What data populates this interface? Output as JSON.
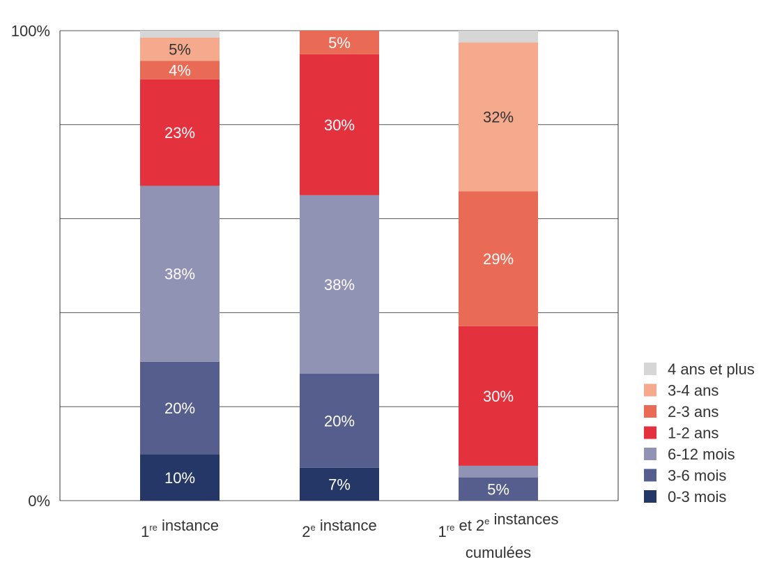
{
  "chart_data": {
    "type": "bar",
    "stacked": true,
    "title": "",
    "xlabel": "",
    "ylabel": "",
    "ylim": [
      0,
      100
    ],
    "yticks": [
      "0%",
      "100%"
    ],
    "grid": true,
    "legend_position": "right-bottom",
    "categories": [
      [
        {
          "t": "1"
        },
        {
          "t": "re",
          "sup": true
        },
        {
          "t": " instance"
        }
      ],
      [
        {
          "t": "2"
        },
        {
          "t": "e",
          "sup": true
        },
        {
          "t": " instance"
        }
      ],
      [
        {
          "t": "1"
        },
        {
          "t": "re",
          "sup": true
        },
        {
          "t": " et 2"
        },
        {
          "t": "e",
          "sup": true
        },
        {
          "t": " instances"
        },
        {
          "t": "\ncumulées"
        }
      ]
    ],
    "series": [
      {
        "name": "0-3 mois",
        "color": "#243766",
        "label_color": "#ffffff",
        "values": [
          10,
          7,
          0
        ],
        "labels": [
          "10%",
          "7%",
          ""
        ]
      },
      {
        "name": "3-6 mois",
        "color": "#555e8c",
        "label_color": "#ffffff",
        "values": [
          20,
          20,
          5
        ],
        "labels": [
          "20%",
          "20%",
          "5%"
        ]
      },
      {
        "name": "6-12 mois",
        "color": "#9193b5",
        "label_color": "#ffffff",
        "values": [
          38,
          38,
          2.5
        ],
        "labels": [
          "38%",
          "38%",
          ""
        ]
      },
      {
        "name": "1-2 ans",
        "color": "#e4313e",
        "label_color": "#ffffff",
        "values": [
          23,
          30,
          30
        ],
        "labels": [
          "23%",
          "30%",
          "30%"
        ]
      },
      {
        "name": "2-3 ans",
        "color": "#ea6b55",
        "label_color": "#ffffff",
        "values": [
          4,
          5,
          29
        ],
        "labels": [
          "4%",
          "5%",
          "29%"
        ]
      },
      {
        "name": "3-4 ans",
        "color": "#f5aa8e",
        "label_color": "#333333",
        "values": [
          5,
          0,
          32
        ],
        "labels": [
          "5%",
          "",
          "32%"
        ]
      },
      {
        "name": "4 ans et plus",
        "color": "#d6d6d6",
        "label_color": "#333333",
        "values": [
          1.5,
          0,
          2.5
        ],
        "labels": [
          "",
          "",
          ""
        ]
      }
    ]
  }
}
